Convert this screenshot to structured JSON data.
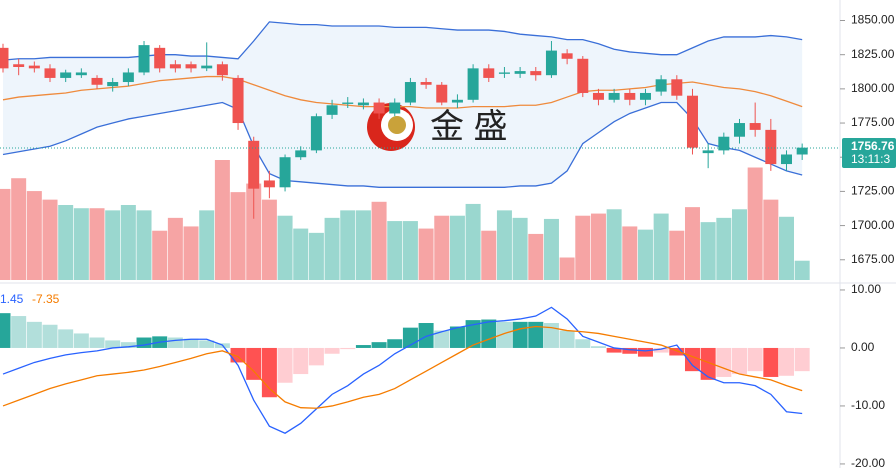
{
  "chart_data": {
    "type": "candlestick",
    "open": [
      1830,
      1818,
      1817,
      1815,
      1808,
      1810,
      1808,
      1802,
      1805,
      1812,
      1830,
      1818,
      1818,
      1815,
      1818,
      1808,
      1762,
      1733,
      1728,
      1750,
      1755,
      1781,
      1789,
      1788,
      1790,
      1782,
      1790,
      1805,
      1803,
      1790,
      1792,
      1815,
      1811,
      1811,
      1813,
      1810,
      1826,
      1822,
      1797,
      1792,
      1797,
      1792,
      1798,
      1807,
      1795,
      1753,
      1755,
      1765,
      1775,
      1770,
      1745,
      1752
    ],
    "high": [
      1833,
      1822,
      1820,
      1818,
      1814,
      1815,
      1810,
      1808,
      1815,
      1835,
      1832,
      1821,
      1820,
      1834,
      1820,
      1810,
      1765,
      1740,
      1752,
      1758,
      1782,
      1792,
      1794,
      1793,
      1793,
      1793,
      1808,
      1808,
      1805,
      1796,
      1818,
      1818,
      1816,
      1816,
      1816,
      1835,
      1829,
      1824,
      1800,
      1800,
      1800,
      1800,
      1810,
      1810,
      1800,
      1760,
      1768,
      1778,
      1790,
      1778,
      1755,
      1760
    ],
    "low": [
      1812,
      1810,
      1812,
      1805,
      1805,
      1808,
      1800,
      1798,
      1802,
      1810,
      1812,
      1812,
      1812,
      1813,
      1806,
      1770,
      1705,
      1720,
      1725,
      1748,
      1753,
      1778,
      1786,
      1785,
      1778,
      1780,
      1788,
      1800,
      1788,
      1786,
      1790,
      1805,
      1808,
      1808,
      1806,
      1808,
      1818,
      1794,
      1788,
      1790,
      1788,
      1788,
      1795,
      1792,
      1752,
      1742,
      1752,
      1760,
      1765,
      1740,
      1740,
      1748
    ],
    "close": [
      1815,
      1816,
      1815,
      1808,
      1812,
      1812,
      1803,
      1805,
      1812,
      1832,
      1815,
      1815,
      1815,
      1817,
      1810,
      1775,
      1727,
      1728,
      1750,
      1755,
      1780,
      1788,
      1790,
      1790,
      1782,
      1790,
      1805,
      1803,
      1790,
      1792,
      1815,
      1808,
      1812,
      1813,
      1810,
      1828,
      1822,
      1797,
      1792,
      1797,
      1792,
      1797,
      1807,
      1795,
      1757,
      1755,
      1765,
      1775,
      1770,
      1745,
      1752,
      1757
    ],
    "volume": [
      85,
      95,
      83,
      75,
      70,
      67,
      67,
      65,
      70,
      65,
      46,
      58,
      50,
      65,
      112,
      82,
      90,
      75,
      60,
      48,
      44,
      58,
      65,
      65,
      73,
      55,
      55,
      48,
      60,
      60,
      71,
      46,
      65,
      58,
      43,
      57,
      21,
      60,
      62,
      66,
      50,
      47,
      62,
      46,
      68,
      54,
      58,
      66,
      105,
      75,
      59,
      18
    ],
    "bands": {
      "upper": [
        1821,
        1822,
        1822,
        1823,
        1823,
        1823,
        1823,
        1823,
        1823,
        1824,
        1825,
        1825,
        1824,
        1824,
        1823,
        1822,
        1835,
        1849,
        1848,
        1847,
        1847,
        1846,
        1846,
        1846,
        1846,
        1845,
        1845,
        1845,
        1844,
        1843,
        1843,
        1843,
        1842,
        1840,
        1839,
        1838,
        1836,
        1836,
        1833,
        1829,
        1827,
        1826,
        1825,
        1825,
        1830,
        1835,
        1838,
        1838,
        1838,
        1839,
        1838,
        1836
      ],
      "middle": [
        1792,
        1794,
        1795,
        1796,
        1797,
        1799,
        1800,
        1801,
        1802,
        1804,
        1806,
        1807,
        1808,
        1809,
        1809,
        1807,
        1803,
        1799,
        1795,
        1792,
        1790,
        1789,
        1788,
        1787,
        1787,
        1787,
        1787,
        1786,
        1786,
        1786,
        1787,
        1787,
        1787,
        1788,
        1788,
        1790,
        1794,
        1798,
        1799,
        1799,
        1800,
        1801,
        1803,
        1804,
        1805,
        1803,
        1801,
        1800,
        1798,
        1795,
        1791,
        1787
      ],
      "lower": [
        1752,
        1754,
        1756,
        1758,
        1762,
        1767,
        1772,
        1775,
        1778,
        1780,
        1782,
        1784,
        1786,
        1788,
        1790,
        1785,
        1758,
        1738,
        1733,
        1732,
        1731,
        1730,
        1729,
        1729,
        1728,
        1728,
        1728,
        1728,
        1728,
        1728,
        1728,
        1728,
        1728,
        1729,
        1729,
        1731,
        1740,
        1760,
        1768,
        1776,
        1782,
        1786,
        1790,
        1790,
        1778,
        1760,
        1757,
        1755,
        1750,
        1745,
        1740,
        1737
      ]
    },
    "ylim": [
      1658,
      1865
    ],
    "yticks": [
      {
        "value": 1850,
        "label": "1850.00"
      },
      {
        "value": 1825,
        "label": "1825.00"
      },
      {
        "value": 1800,
        "label": "1800.00"
      },
      {
        "value": 1775,
        "label": "1775.00"
      },
      {
        "value": 1750,
        "label": "1750.00"
      },
      {
        "value": 1725,
        "label": "1725.00"
      },
      {
        "value": 1700,
        "label": "1700.00"
      },
      {
        "value": 1675,
        "label": "1675.00"
      }
    ],
    "last_price": {
      "value": 1756.76,
      "label": "1756.76",
      "time": "13:11:3"
    },
    "logo_text": "金 盛",
    "colors": {
      "up": "#26a69a",
      "down": "#ef5350",
      "vol_up": "#9ad7cf",
      "vol_down": "#f6a4a4",
      "upper": "#3a6fd8",
      "middle": "#ef8a3c",
      "lower": "#3a6fd8",
      "band_fill": "#eef5fc"
    },
    "macd": {
      "legend": [
        "1.45",
        "-7.35"
      ],
      "histogram": [
        6,
        5.5,
        4.5,
        4,
        3.2,
        2.5,
        1.8,
        1.3,
        1,
        1.8,
        2,
        1.8,
        1.6,
        1.3,
        0.8,
        -2.5,
        -5.5,
        -8.5,
        -6,
        -4.5,
        -3,
        -1,
        -0.2,
        0.5,
        1,
        1.5,
        3.5,
        4.3,
        3,
        3.7,
        4.8,
        4.9,
        4.5,
        4.5,
        4.5,
        4.3,
        3,
        1.5,
        0.3,
        -0.8,
        -1,
        -1.5,
        -0.8,
        -1.3,
        -4,
        -5.5,
        -5,
        -4.5,
        -4,
        -5,
        -4.8,
        -4
      ],
      "macd": [
        -4.5,
        -3.5,
        -2.5,
        -1.8,
        -1.2,
        -0.8,
        -0.5,
        0,
        0.2,
        0.5,
        1,
        1.3,
        1.5,
        1.5,
        0.5,
        -3,
        -9,
        -13.5,
        -14.7,
        -13,
        -10.5,
        -8,
        -6.5,
        -4.5,
        -3,
        -1,
        0.5,
        2,
        2.8,
        3.5,
        4,
        4.5,
        4.7,
        5,
        5.5,
        7,
        5,
        2,
        1,
        0,
        -0.3,
        -0.5,
        -0.2,
        0.5,
        -3,
        -5,
        -6,
        -6,
        -6.5,
        -8,
        -11,
        -11.3
      ],
      "signal": [
        -10,
        -9,
        -8,
        -7,
        -6.2,
        -5.5,
        -4.8,
        -4.5,
        -4.2,
        -3.8,
        -3.2,
        -2.5,
        -1.8,
        -1,
        -0.5,
        -1.5,
        -4,
        -7,
        -9.3,
        -10.3,
        -10.4,
        -10,
        -9.3,
        -8.5,
        -8,
        -7,
        -5.5,
        -4,
        -2.5,
        -1,
        0.5,
        1.5,
        2.5,
        3.3,
        3.7,
        3.5,
        3,
        2.8,
        2.5,
        2,
        1.5,
        1,
        0.5,
        -0.5,
        -1.5,
        -2.5,
        -3.5,
        -4.5,
        -5,
        -5.5,
        -6.5,
        -7.35
      ],
      "ylim": [
        -20.7,
        11.2
      ],
      "yticks": [
        {
          "value": 10,
          "label": "10.00"
        },
        {
          "value": 0,
          "label": "0.00"
        },
        {
          "value": -10,
          "label": "-10.00"
        },
        {
          "value": -20,
          "label": "-20.00"
        }
      ],
      "colors": {
        "pos_up": "#26a69a",
        "pos_down": "#b2dfdb",
        "neg_down": "#ff5252",
        "neg_up": "#ffcdd2",
        "macd": "#2962ff",
        "signal": "#f57c00"
      }
    }
  }
}
